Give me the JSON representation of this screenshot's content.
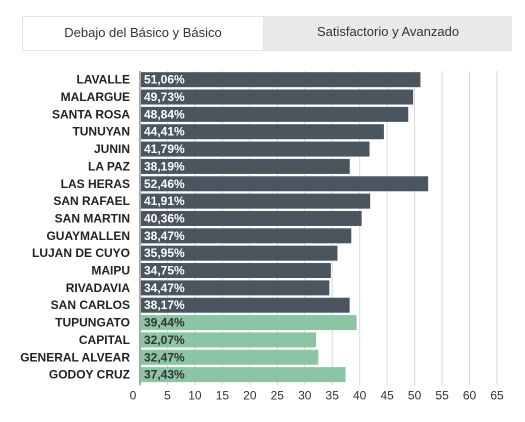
{
  "tabs": [
    {
      "label": "Debajo del Básico y Básico",
      "active": true
    },
    {
      "label": "Satisfactorio y Avanzado",
      "active": false
    }
  ],
  "colors": {
    "dark": "#4a5560",
    "green": "#8cc5a6",
    "dark_text": "#ffffff",
    "green_text": "#333333"
  },
  "chart_data": {
    "type": "bar",
    "orientation": "horizontal",
    "categories": [
      "LAVALLE",
      "MALARGUE",
      "SANTA ROSA",
      "TUNUYAN",
      "JUNIN",
      "LA PAZ",
      "LAS HERAS",
      "SAN RAFAEL",
      "SAN MARTIN",
      "GUAYMALLEN",
      "LUJAN DE CUYO",
      "MAIPU",
      "RIVADAVIA",
      "SAN CARLOS",
      "TUPUNGATO",
      "CAPITAL",
      "GENERAL ALVEAR",
      "GODOY CRUZ"
    ],
    "values": [
      51.06,
      49.73,
      48.84,
      44.41,
      41.79,
      38.19,
      52.46,
      41.91,
      40.36,
      38.47,
      35.95,
      34.75,
      34.47,
      38.17,
      39.44,
      32.07,
      32.47,
      37.43
    ],
    "labels": [
      "51,06%",
      "49,73%",
      "48,84%",
      "44,41%",
      "41,79%",
      "38,19%",
      "52,46%",
      "41,91%",
      "40,36%",
      "38,47%",
      "35,95%",
      "34,75%",
      "34,47%",
      "38,17%",
      "39,44%",
      "32,07%",
      "32,47%",
      "37,43%"
    ],
    "bar_color_group": [
      "dark",
      "dark",
      "dark",
      "dark",
      "dark",
      "dark",
      "dark",
      "dark",
      "dark",
      "dark",
      "dark",
      "dark",
      "dark",
      "dark",
      "green",
      "green",
      "green",
      "green"
    ],
    "x_ticks": [
      "0",
      "5",
      "10",
      "15",
      "20",
      "25",
      "30",
      "35",
      "40",
      "45",
      "50",
      "55",
      "60",
      "65"
    ],
    "xlim": [
      0,
      65
    ],
    "grid": true
  }
}
